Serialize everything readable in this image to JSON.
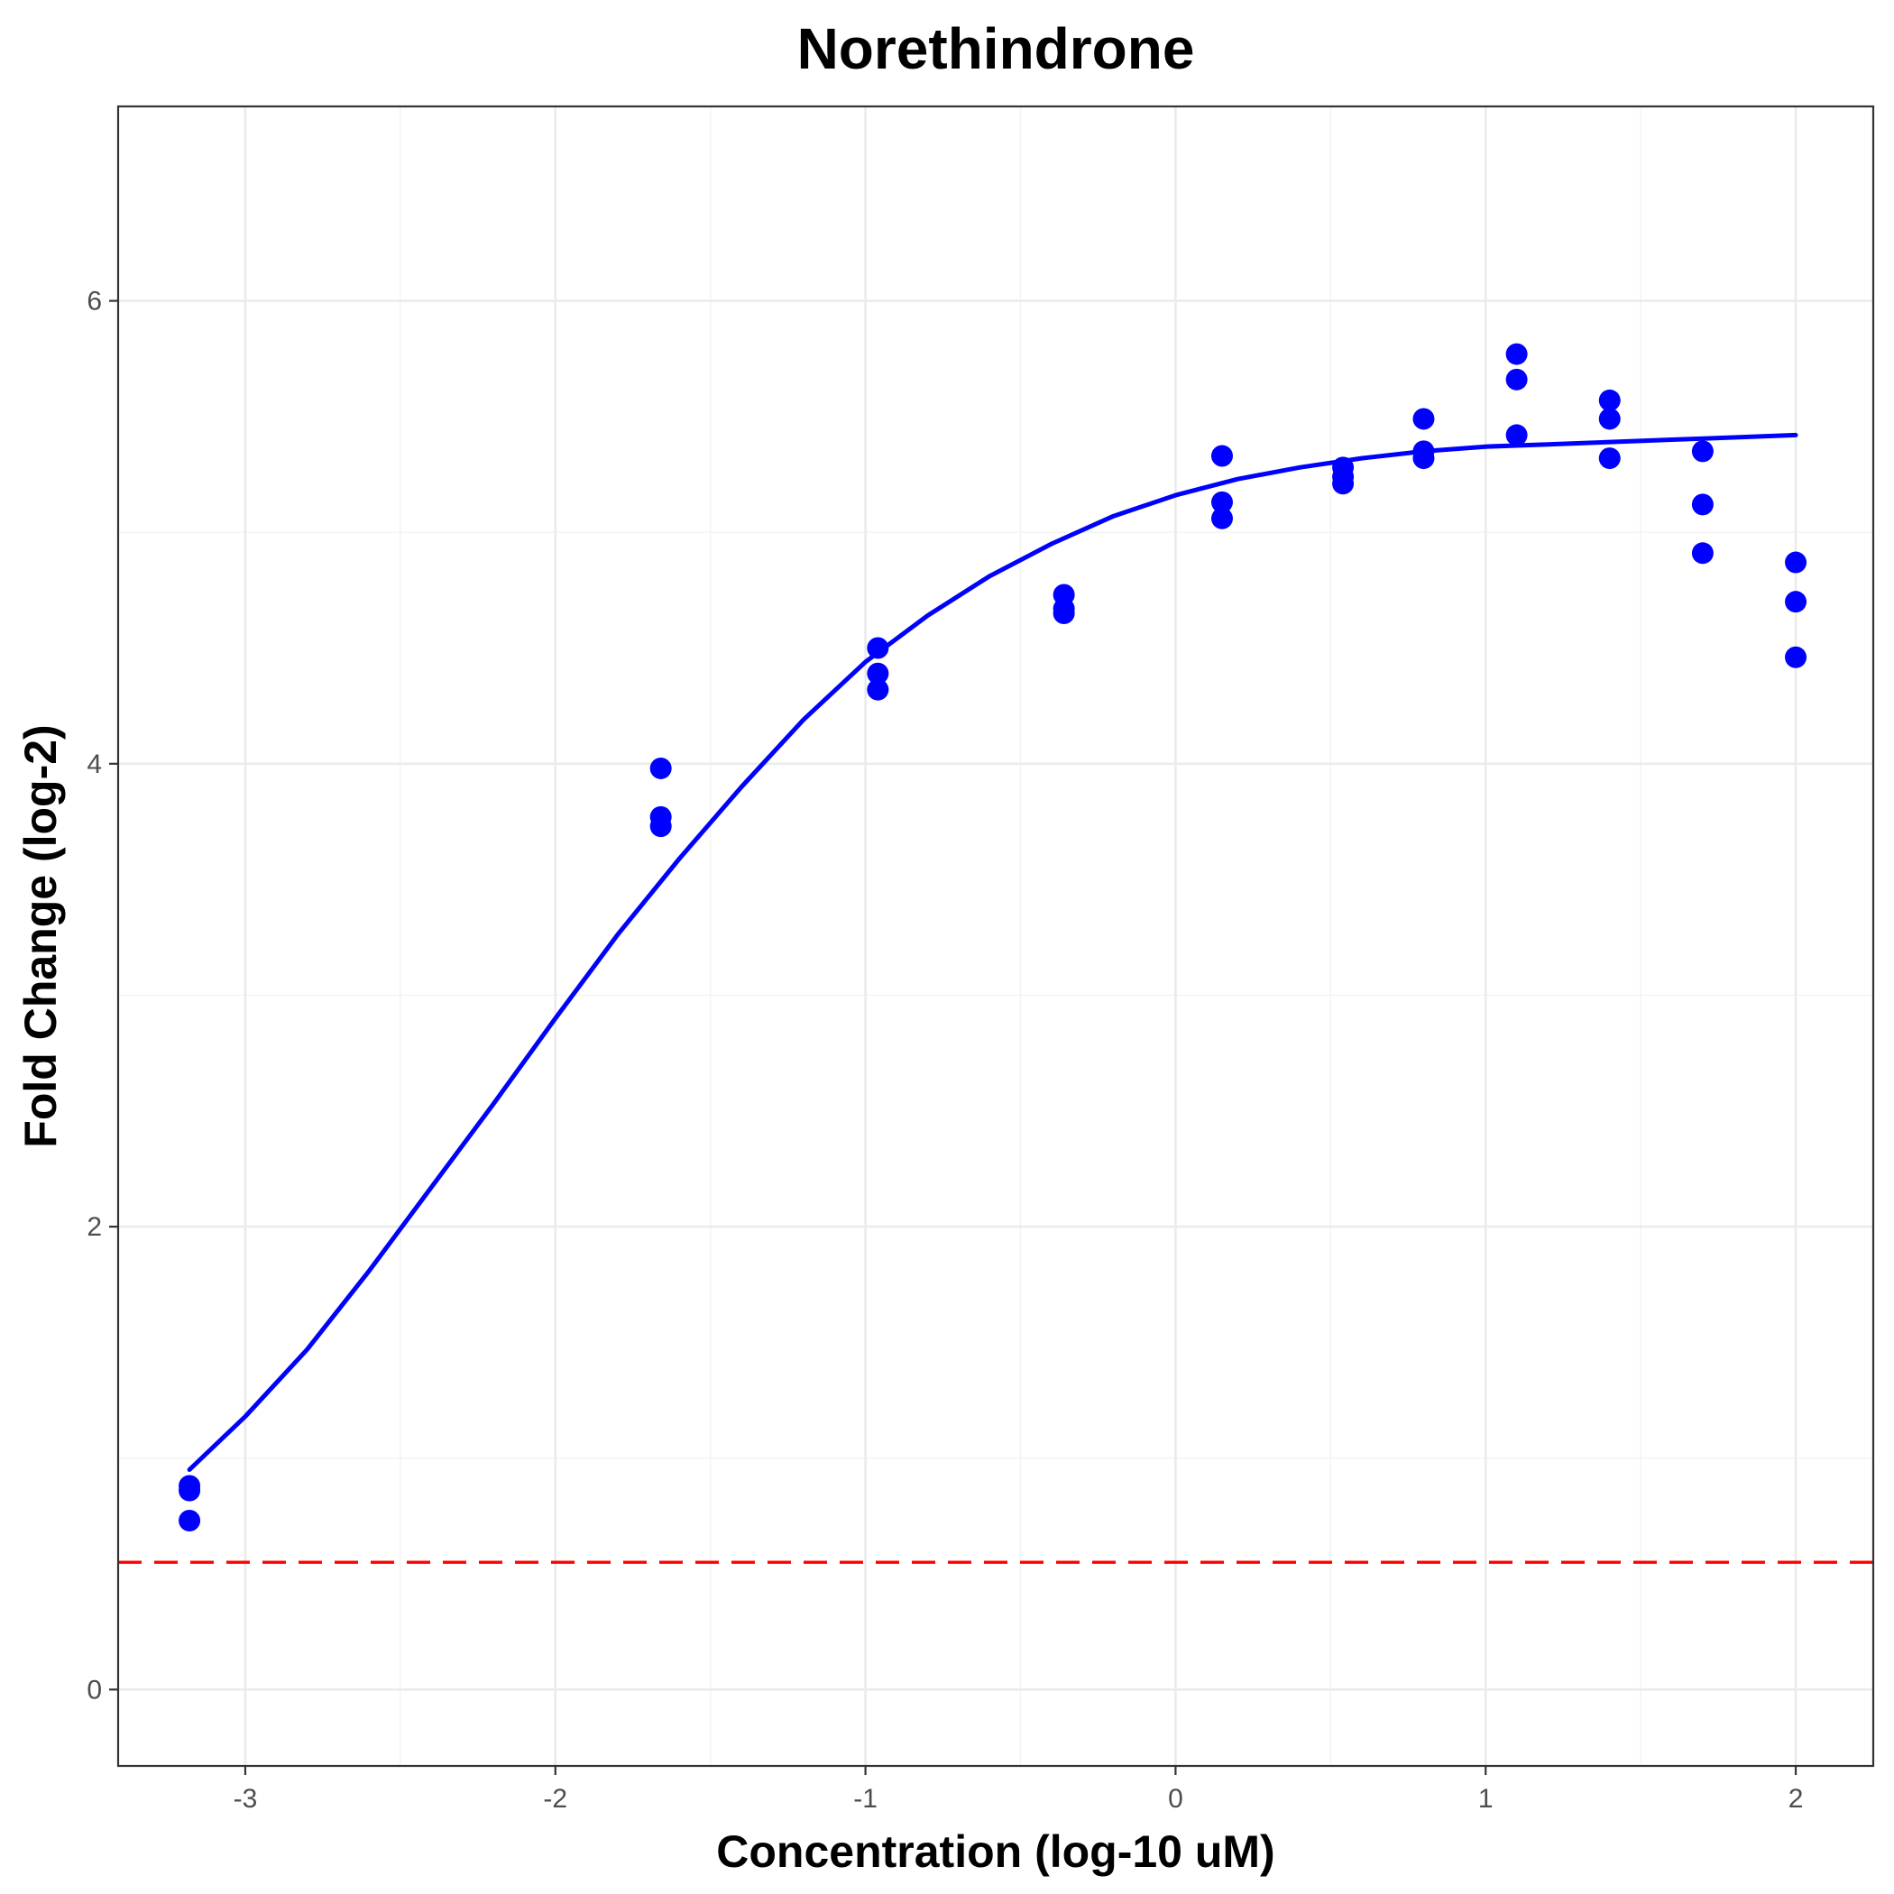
{
  "chart_data": {
    "type": "scatter",
    "title": "Norethindrone",
    "xlabel": "Concentration (log-10 uM)",
    "ylabel": "Fold Change (log-2)",
    "xlim": [
      -3.41,
      2.25
    ],
    "ylim": [
      -0.33,
      6.84
    ],
    "x_ticks": [
      -3,
      -2,
      -1,
      0,
      1,
      2
    ],
    "y_ticks": [
      0,
      2,
      4,
      6
    ],
    "grid": true,
    "colors": {
      "points": "#0000ff",
      "fit": "#0000ff",
      "threshold": "#ff0000"
    },
    "points": [
      {
        "x": -3.18,
        "y": 0.88
      },
      {
        "x": -3.18,
        "y": 0.86
      },
      {
        "x": -3.18,
        "y": 0.73
      },
      {
        "x": -1.66,
        "y": 3.98
      },
      {
        "x": -1.66,
        "y": 3.77
      },
      {
        "x": -1.66,
        "y": 3.73
      },
      {
        "x": -0.96,
        "y": 4.5
      },
      {
        "x": -0.96,
        "y": 4.39
      },
      {
        "x": -0.96,
        "y": 4.32
      },
      {
        "x": -0.36,
        "y": 4.73
      },
      {
        "x": -0.36,
        "y": 4.67
      },
      {
        "x": -0.36,
        "y": 4.65
      },
      {
        "x": 0.15,
        "y": 5.33
      },
      {
        "x": 0.15,
        "y": 5.13
      },
      {
        "x": 0.15,
        "y": 5.06
      },
      {
        "x": 0.54,
        "y": 5.28
      },
      {
        "x": 0.54,
        "y": 5.24
      },
      {
        "x": 0.54,
        "y": 5.21
      },
      {
        "x": 0.8,
        "y": 5.49
      },
      {
        "x": 0.8,
        "y": 5.35
      },
      {
        "x": 0.8,
        "y": 5.32
      },
      {
        "x": 1.1,
        "y": 5.77
      },
      {
        "x": 1.1,
        "y": 5.66
      },
      {
        "x": 1.1,
        "y": 5.42
      },
      {
        "x": 1.4,
        "y": 5.57
      },
      {
        "x": 1.4,
        "y": 5.49
      },
      {
        "x": 1.4,
        "y": 5.32
      },
      {
        "x": 1.7,
        "y": 5.35
      },
      {
        "x": 1.7,
        "y": 5.12
      },
      {
        "x": 1.7,
        "y": 4.91
      },
      {
        "x": 2.0,
        "y": 4.87
      },
      {
        "x": 2.0,
        "y": 4.7
      },
      {
        "x": 2.0,
        "y": 4.46
      }
    ],
    "fit_curve": {
      "x": [
        -3.18,
        -3.0,
        -2.8,
        -2.6,
        -2.4,
        -2.2,
        -2.0,
        -1.8,
        -1.6,
        -1.4,
        -1.2,
        -1.0,
        -0.8,
        -0.6,
        -0.4,
        -0.2,
        0.0,
        0.2,
        0.4,
        0.6,
        0.8,
        1.0,
        1.2,
        1.4,
        1.6,
        1.8,
        2.0
      ],
      "y": [
        0.95,
        1.18,
        1.47,
        1.81,
        2.17,
        2.53,
        2.9,
        3.26,
        3.59,
        3.9,
        4.19,
        4.44,
        4.64,
        4.81,
        4.95,
        5.07,
        5.16,
        5.23,
        5.28,
        5.32,
        5.35,
        5.37,
        5.38,
        5.39,
        5.4,
        5.41,
        5.42
      ]
    },
    "threshold_y": 0.55
  }
}
